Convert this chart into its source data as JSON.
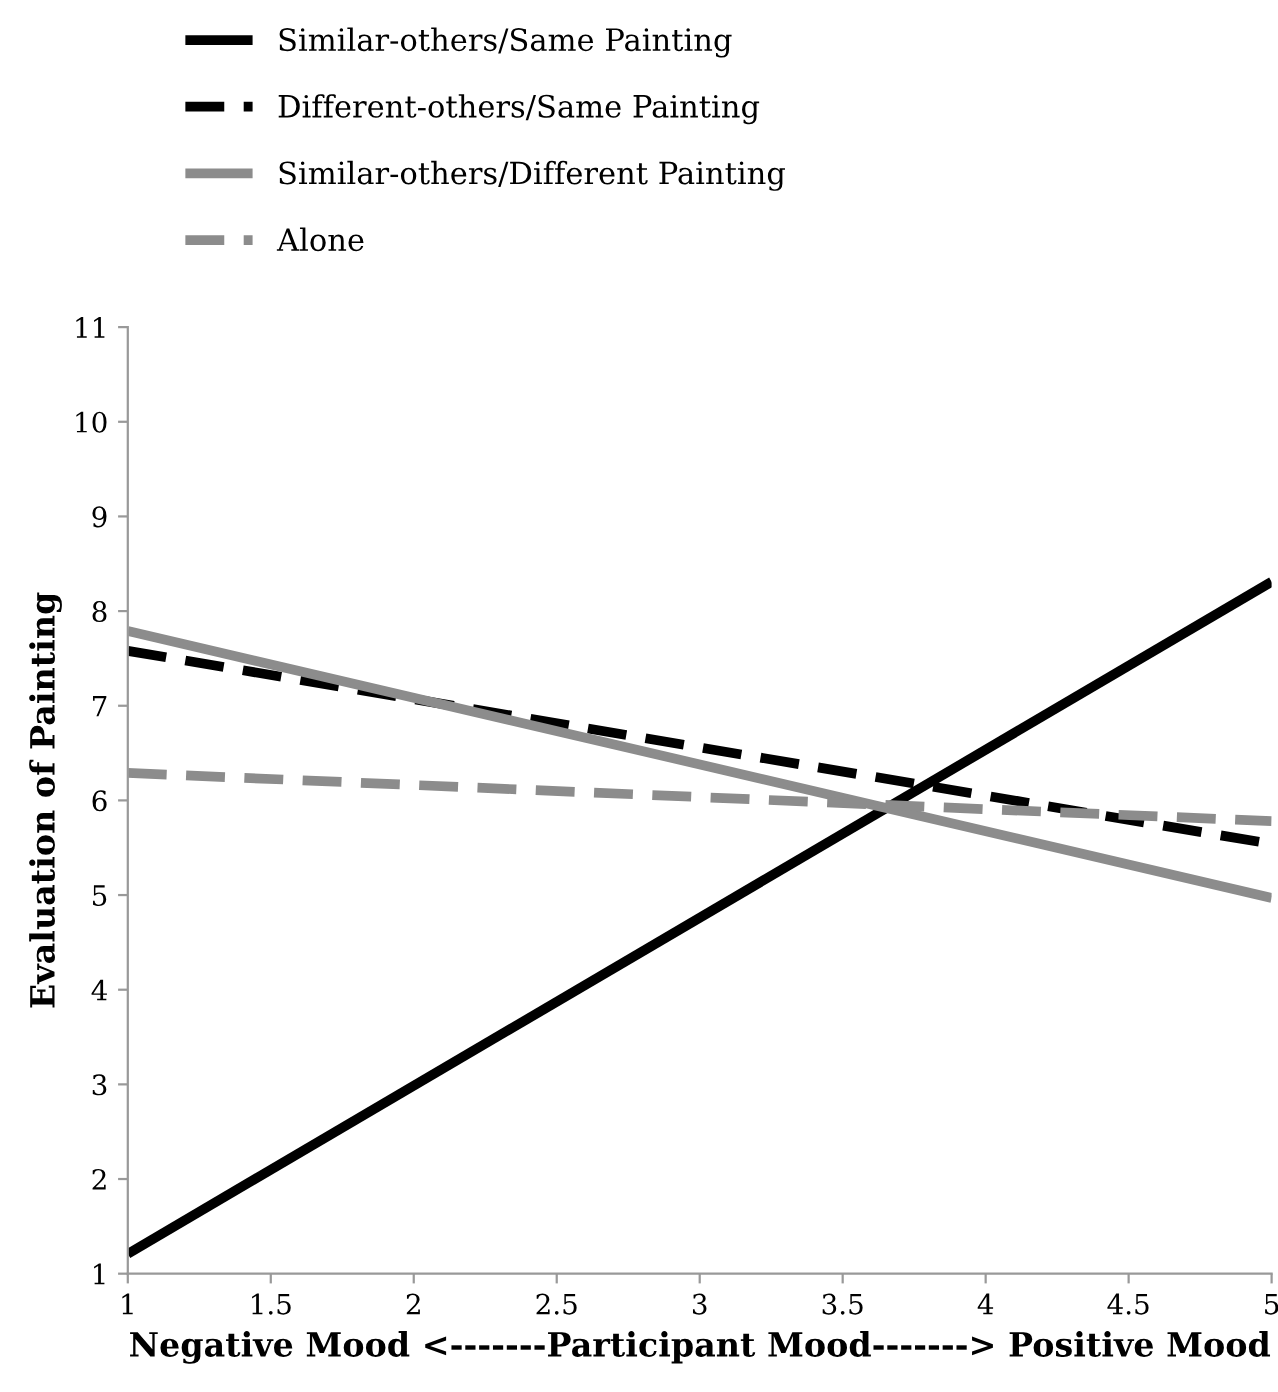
{
  "chart_data": {
    "type": "line",
    "xlabel": "Negative Mood <-------Participant Mood-------> Positive Mood",
    "ylabel": "Evaluation of Painting",
    "x": [
      1,
      5
    ],
    "series": [
      {
        "name": "Similar-others/Same Painting",
        "color": "#000000",
        "values": [
          1.21,
          8.31
        ],
        "line_style": "solid"
      },
      {
        "name": "Different-others/Same Painting",
        "color": "#000000",
        "values": [
          7.58,
          5.54
        ],
        "line_style": "dashed"
      },
      {
        "name": "Similar-others/Different Painting",
        "color": "#8c8c8c",
        "values": [
          7.79,
          4.97
        ],
        "line_style": "solid"
      },
      {
        "name": "Alone",
        "color": "#8c8c8c",
        "values": [
          6.29,
          5.78
        ],
        "line_style": "dashed"
      }
    ],
    "xlim": [
      1,
      5
    ],
    "xticks": [
      1,
      1.5,
      2,
      2.5,
      3,
      3.5,
      4,
      4.5,
      5
    ],
    "ylim": [
      1,
      11
    ],
    "yticks": [
      1,
      2,
      3,
      4,
      5,
      6,
      7,
      8,
      9,
      10,
      11
    ],
    "legend": "top",
    "grid": false,
    "marker": "none"
  }
}
